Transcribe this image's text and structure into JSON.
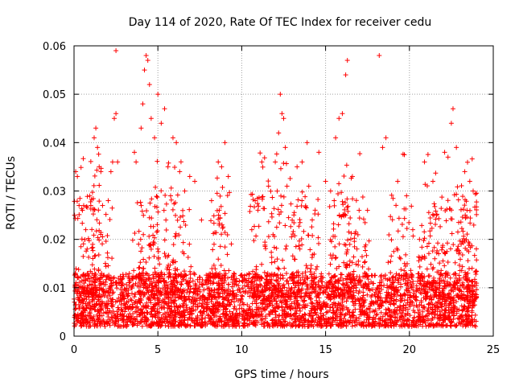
{
  "chart_data": {
    "type": "scatter",
    "title": "Day 114 of 2020, Rate Of TEC Index for receiver cedu",
    "xlabel": "GPS time / hours",
    "ylabel": "ROTI / TECUs",
    "xlim": [
      0,
      25
    ],
    "ylim": [
      0,
      0.06
    ],
    "x_ticks": [
      0,
      5,
      10,
      15,
      20,
      25
    ],
    "x_tick_labels": [
      "0",
      "5",
      "10",
      "15",
      "20",
      "25"
    ],
    "y_ticks": [
      0,
      0.01,
      0.02,
      0.03,
      0.04,
      0.05,
      0.06
    ],
    "y_tick_labels": [
      "0",
      "0.01",
      "0.02",
      "0.03",
      "0.04",
      "0.05",
      "0.06"
    ],
    "grid": true,
    "marker": "plus",
    "color": "#ff0000",
    "series": [
      {
        "points": [
          [
            0.1,
            0.034
          ],
          [
            0.2,
            0.033
          ],
          [
            0.3,
            0.027
          ],
          [
            0.5,
            0.026
          ],
          [
            0.7,
            0.022
          ],
          [
            1.0,
            0.027
          ],
          [
            1.2,
            0.041
          ],
          [
            1.3,
            0.043
          ],
          [
            1.4,
            0.039
          ],
          [
            1.5,
            0.035
          ],
          [
            1.6,
            0.034
          ],
          [
            1.7,
            0.027
          ],
          [
            2.2,
            0.034
          ],
          [
            2.3,
            0.036
          ],
          [
            2.4,
            0.045
          ],
          [
            2.5,
            0.046
          ],
          [
            2.5,
            0.059
          ],
          [
            2.6,
            0.036
          ],
          [
            3.6,
            0.038
          ],
          [
            3.7,
            0.036
          ],
          [
            4.0,
            0.043
          ],
          [
            4.1,
            0.048
          ],
          [
            4.2,
            0.055
          ],
          [
            4.3,
            0.058
          ],
          [
            4.4,
            0.057
          ],
          [
            4.5,
            0.052
          ],
          [
            4.6,
            0.045
          ],
          [
            4.8,
            0.041
          ],
          [
            5.0,
            0.05
          ],
          [
            5.2,
            0.044
          ],
          [
            5.4,
            0.047
          ],
          [
            5.6,
            0.035
          ],
          [
            5.9,
            0.041
          ],
          [
            6.1,
            0.04
          ],
          [
            6.3,
            0.034
          ],
          [
            6.6,
            0.03
          ],
          [
            6.9,
            0.033
          ],
          [
            7.2,
            0.032
          ],
          [
            7.6,
            0.024
          ],
          [
            8.2,
            0.028
          ],
          [
            8.6,
            0.036
          ],
          [
            8.8,
            0.035
          ],
          [
            9.0,
            0.04
          ],
          [
            9.2,
            0.033
          ],
          [
            10.6,
            0.022
          ],
          [
            10.8,
            0.028
          ],
          [
            11.2,
            0.036
          ],
          [
            11.6,
            0.031
          ],
          [
            12.0,
            0.036
          ],
          [
            12.2,
            0.042
          ],
          [
            12.3,
            0.05
          ],
          [
            12.4,
            0.046
          ],
          [
            12.5,
            0.045
          ],
          [
            12.6,
            0.039
          ],
          [
            12.7,
            0.031
          ],
          [
            13.3,
            0.035
          ],
          [
            13.6,
            0.036
          ],
          [
            13.9,
            0.04
          ],
          [
            14.0,
            0.031
          ],
          [
            14.6,
            0.038
          ],
          [
            15.0,
            0.032
          ],
          [
            15.3,
            0.03
          ],
          [
            15.6,
            0.041
          ],
          [
            15.8,
            0.045
          ],
          [
            16.0,
            0.046
          ],
          [
            16.2,
            0.054
          ],
          [
            16.3,
            0.057
          ],
          [
            16.6,
            0.033
          ],
          [
            17.0,
            0.026
          ],
          [
            17.5,
            0.026
          ],
          [
            18.2,
            0.058
          ],
          [
            18.4,
            0.039
          ],
          [
            18.6,
            0.041
          ],
          [
            19.3,
            0.032
          ],
          [
            20.2,
            0.022
          ],
          [
            20.6,
            0.02
          ],
          [
            20.9,
            0.036
          ],
          [
            21.4,
            0.032
          ],
          [
            22.1,
            0.038
          ],
          [
            22.3,
            0.037
          ],
          [
            22.5,
            0.044
          ],
          [
            22.6,
            0.047
          ],
          [
            22.8,
            0.039
          ],
          [
            23.3,
            0.034
          ],
          [
            23.6,
            0.032
          ],
          [
            23.8,
            0.03
          ]
        ]
      }
    ]
  }
}
